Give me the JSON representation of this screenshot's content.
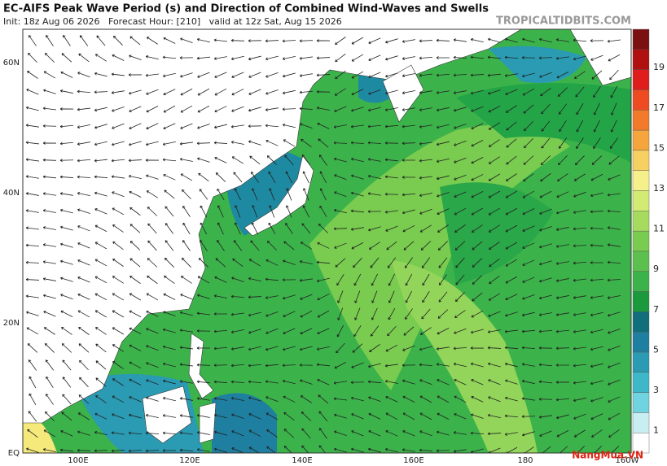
{
  "header": {
    "title": "EC-AIFS Peak Wave Period (s) and Direction of Combined Wind-Waves and Swells",
    "subtitle": "Init: 18z Aug 06 2026   Forecast Hour: [210]   valid at 12z Sat, Aug 15 2026",
    "source": "TROPICALTIDBITS.COM"
  },
  "map": {
    "lat_labels": [
      "60N",
      "40N",
      "20N",
      "EQ"
    ],
    "lon_labels": [
      "100E",
      "120E",
      "140E",
      "160E",
      "180",
      "160W"
    ]
  },
  "colorbar": {
    "labels": [
      1,
      3,
      5,
      7,
      9,
      11,
      13,
      15,
      17,
      19
    ]
  },
  "watermark": "NangMua.VN"
}
